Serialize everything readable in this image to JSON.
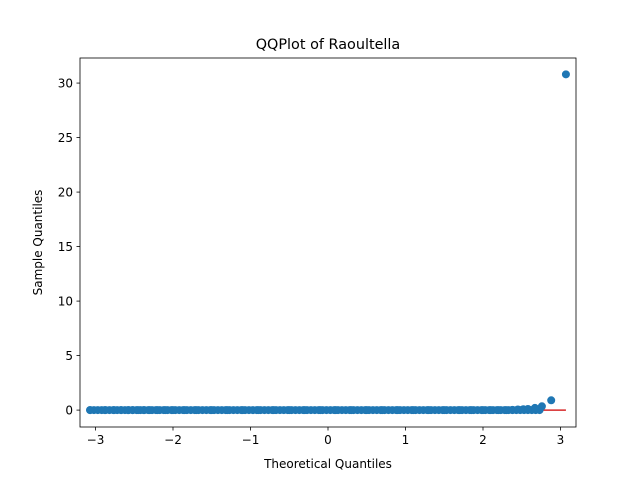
{
  "chart_data": {
    "type": "scatter",
    "title": "QQPlot of Raoultella",
    "xlabel": "Theoretical Quantiles",
    "ylabel": "Sample Quantiles",
    "xlim": [
      -3.2,
      3.2
    ],
    "ylim": [
      -1.55,
      32.3
    ],
    "xticks": [
      -3,
      -2,
      -1,
      0,
      1,
      2,
      3
    ],
    "xtick_labels": [
      "−3",
      "−2",
      "−1",
      "0",
      "1",
      "2",
      "3"
    ],
    "yticks": [
      0,
      5,
      10,
      15,
      20,
      25,
      30
    ],
    "ytick_labels": [
      "0",
      "5",
      "10",
      "15",
      "20",
      "25",
      "30"
    ],
    "grid": false,
    "marker_color": "#1f77b4",
    "line_color": "#d62728",
    "series": [
      {
        "kind": "sample-points",
        "x": [
          -3.07,
          -2.88,
          -2.76,
          -2.67,
          -2.58,
          -2.52,
          -2.45,
          -2.38,
          -2.3,
          -2.2,
          -2.1,
          -2.0,
          -1.85,
          -1.7,
          -1.5,
          -1.3,
          -1.1,
          -0.9,
          -0.7,
          -0.5,
          -0.3,
          -0.1,
          0.1,
          0.3,
          0.5,
          0.7,
          0.9,
          1.1,
          1.3,
          1.5,
          1.7,
          1.85,
          2.0,
          2.1,
          2.2,
          2.3,
          2.38,
          2.45,
          2.52,
          2.58,
          2.67,
          2.76,
          2.88,
          3.07
        ],
        "y": [
          0.0,
          0.0,
          0.0,
          0.0,
          0.0,
          0.0,
          0.0,
          0.0,
          0.0,
          0.0,
          0.0,
          0.0,
          0.0,
          0.0,
          0.0,
          0.0,
          0.0,
          0.0,
          0.0,
          0.0,
          0.0,
          0.0,
          0.0,
          0.0,
          0.0,
          0.0,
          0.0,
          0.0,
          0.0,
          0.0,
          0.0,
          0.0,
          0.0,
          0.0,
          0.0,
          0.0,
          0.02,
          0.05,
          0.08,
          0.1,
          0.2,
          0.35,
          0.9,
          30.8
        ]
      },
      {
        "kind": "reference-line",
        "x": [
          -3.07,
          3.07
        ],
        "y": [
          0.0,
          0.0
        ]
      }
    ]
  }
}
